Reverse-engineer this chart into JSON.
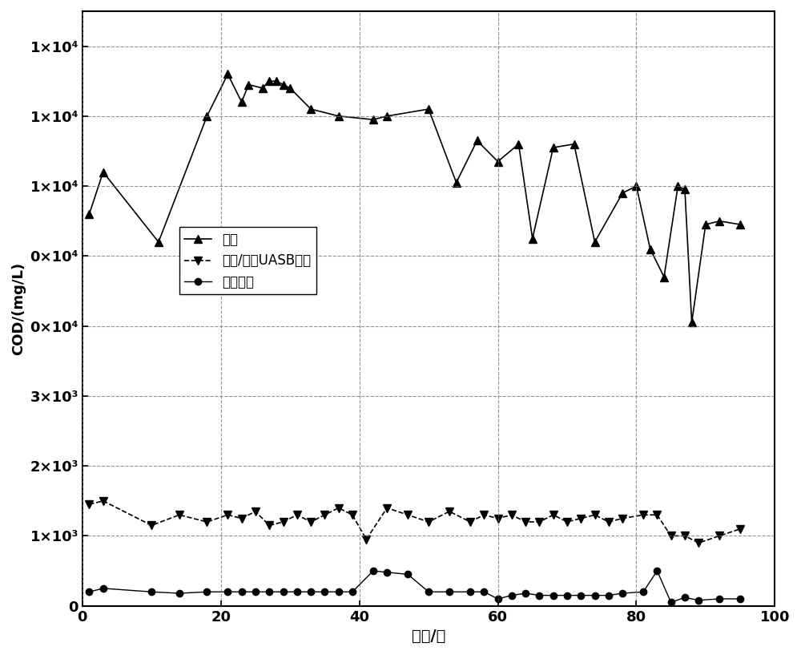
{
  "series1_x": [
    1,
    3,
    11,
    18,
    21,
    23,
    24,
    26,
    27,
    28,
    29,
    30,
    33,
    37,
    42,
    44,
    50,
    54,
    57,
    60,
    63,
    65,
    68,
    71,
    74,
    78,
    80,
    82,
    84,
    86,
    87,
    88,
    90,
    92,
    95
  ],
  "series1_y": [
    5600,
    6200,
    5200,
    7000,
    7600,
    7200,
    7450,
    7400,
    7500,
    7500,
    7450,
    7400,
    7100,
    7000,
    6950,
    7000,
    7100,
    6050,
    6650,
    6350,
    6600,
    5250,
    6550,
    6600,
    5200,
    5900,
    6000,
    5100,
    4700,
    6000,
    5950,
    4050,
    5450,
    5500,
    5450
  ],
  "series2_x": [
    1,
    3,
    10,
    14,
    18,
    21,
    23,
    25,
    27,
    29,
    31,
    33,
    35,
    37,
    39,
    41,
    44,
    47,
    50,
    53,
    56,
    58,
    60,
    62,
    64,
    66,
    68,
    70,
    72,
    74,
    76,
    78,
    81,
    83,
    85,
    87,
    89,
    92,
    95
  ],
  "series2_y": [
    1450,
    1500,
    1150,
    1300,
    1200,
    1300,
    1250,
    1350,
    1150,
    1200,
    1300,
    1200,
    1300,
    1400,
    1300,
    950,
    1400,
    1300,
    1200,
    1350,
    1200,
    1300,
    1250,
    1300,
    1200,
    1200,
    1300,
    1200,
    1250,
    1300,
    1200,
    1250,
    1300,
    1300,
    1000,
    1000,
    900,
    1000,
    1100
  ],
  "series3_x": [
    1,
    3,
    10,
    14,
    18,
    21,
    23,
    25,
    27,
    29,
    31,
    33,
    35,
    37,
    39,
    42,
    44,
    47,
    50,
    53,
    56,
    58,
    60,
    62,
    64,
    66,
    68,
    70,
    72,
    74,
    76,
    78,
    81,
    83,
    85,
    87,
    89,
    92,
    95
  ],
  "series3_y": [
    200,
    250,
    200,
    180,
    200,
    200,
    200,
    200,
    200,
    200,
    200,
    200,
    200,
    200,
    200,
    500,
    480,
    450,
    200,
    200,
    200,
    200,
    100,
    150,
    180,
    150,
    150,
    150,
    150,
    150,
    150,
    180,
    200,
    500,
    50,
    120,
    80,
    100,
    100
  ],
  "line1_style": "-",
  "line2_style": "--",
  "line3_style": "-",
  "color": "#000000",
  "marker1": "^",
  "marker2": "v",
  "marker3": "o",
  "markersize1": 7,
  "markersize2": 7,
  "markersize3": 6,
  "xlabel": "时间/天",
  "ylabel": "COD/(mg/L)",
  "xlim": [
    0,
    100
  ],
  "ylim": [
    0,
    8500
  ],
  "yticks": [
    0,
    1000,
    2000,
    3000,
    4000,
    5000,
    6000,
    7000,
    8000
  ],
  "xticks": [
    0,
    20,
    40,
    60,
    80,
    100
  ],
  "legend1": "原液",
  "legend2": "缺氧/厌氧UASB出水",
  "legend3": "系统出水",
  "grid_color": "#777777",
  "background_color": "#ffffff",
  "fig_width": 10.0,
  "fig_height": 8.17
}
